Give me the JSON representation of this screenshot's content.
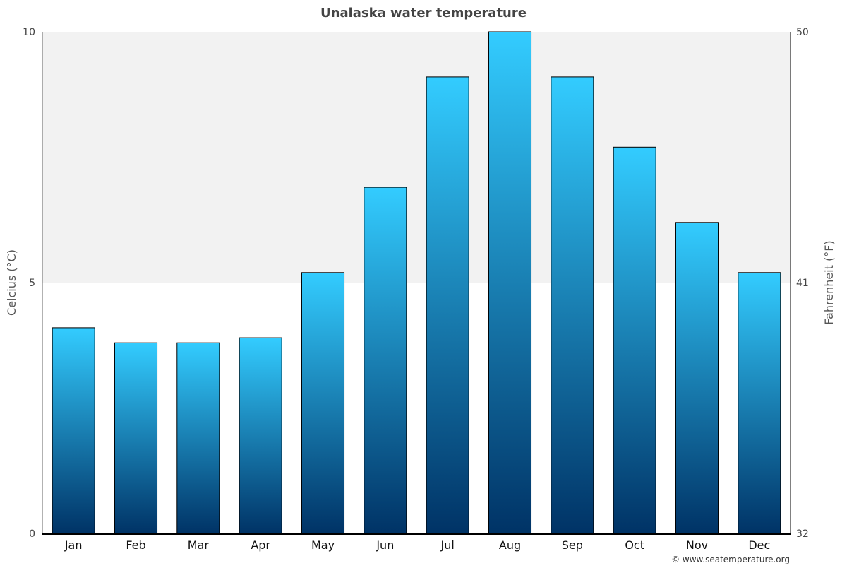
{
  "chart_data": {
    "type": "bar",
    "title": "Unalaska water temperature",
    "categories": [
      "Jan",
      "Feb",
      "Mar",
      "Apr",
      "May",
      "Jun",
      "Jul",
      "Aug",
      "Sep",
      "Oct",
      "Nov",
      "Dec"
    ],
    "values": [
      4.1,
      3.8,
      3.8,
      3.9,
      5.2,
      6.9,
      9.1,
      10.0,
      9.1,
      7.7,
      6.2,
      5.2
    ],
    "ylabel": "Celcius (°C)",
    "y2label": "Fahrenheit (°F)",
    "ylim": [
      0,
      10
    ],
    "y2lim": [
      32,
      50
    ],
    "yticks": [
      "0",
      "5",
      "10"
    ],
    "yticks_values": [
      0,
      5,
      10
    ],
    "y2ticks": [
      "32",
      "41",
      "50"
    ],
    "y2ticks_values": [
      32,
      41,
      50
    ],
    "shaded_band": [
      5,
      10
    ],
    "grid": false,
    "legend": "none"
  },
  "credit": "© www.seatemperature.org",
  "colors": {
    "bar_top": "#33ccff",
    "bar_bottom": "#003366",
    "band": "#f2f2f2",
    "axis": "#000000"
  }
}
